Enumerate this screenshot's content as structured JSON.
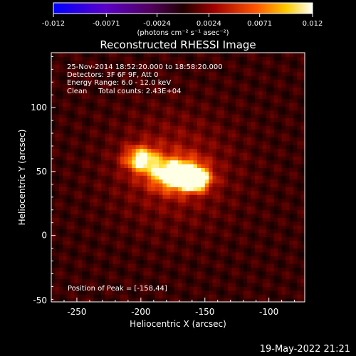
{
  "colorbar": {
    "ticks": [
      "-0.012",
      "-0.0071",
      "-0.0024",
      "0.0024",
      "0.0071",
      "0.012"
    ],
    "tick_values": [
      -0.012,
      -0.0071,
      -0.0024,
      0.0024,
      0.0071,
      0.012
    ],
    "units_label": "(photons cm⁻² s⁻¹ asec⁻²)",
    "range": [
      -0.012,
      0.012
    ]
  },
  "footer": {
    "timestamp": "19-May-2022 21:21"
  },
  "chart_data": {
    "type": "heatmap",
    "title": "Reconstructed RHESSI Image",
    "xlabel": "Heliocentric X (arcsec)",
    "ylabel": "Heliocentric Y (arcsec)",
    "xlim": [
      -270,
      -72
    ],
    "ylim": [
      -52,
      143
    ],
    "x_ticks": [
      -250,
      -200,
      -150,
      -100
    ],
    "y_ticks": [
      0,
      50,
      100
    ],
    "x_tick_labels": [
      "-250",
      "-200",
      "-150",
      "-100"
    ],
    "y_tick_labels": [
      "0",
      "50",
      "100"
    ],
    "annotations": [
      "25-Nov-2014 18:52:20.000 to 18:58:20.000",
      "Detectors: 3F 6F 9F, Att 0",
      "Energy Range: 6.0 - 12.0 keV",
      "Clean     Total counts: 2.43E+04"
    ],
    "peak_label": "Position of Peak = [-158,44]",
    "peak": {
      "x": -158,
      "y": 44
    },
    "sources": [
      {
        "x": -200,
        "y": 60,
        "sigma_x": 9,
        "sigma_y": 7,
        "amp": 0.75
      },
      {
        "x": -172,
        "y": 48,
        "sigma_x": 13,
        "sigma_y": 8,
        "amp": 1.0
      },
      {
        "x": -158,
        "y": 44,
        "sigma_x": 8,
        "sigma_y": 6,
        "amp": 0.9
      }
    ]
  }
}
